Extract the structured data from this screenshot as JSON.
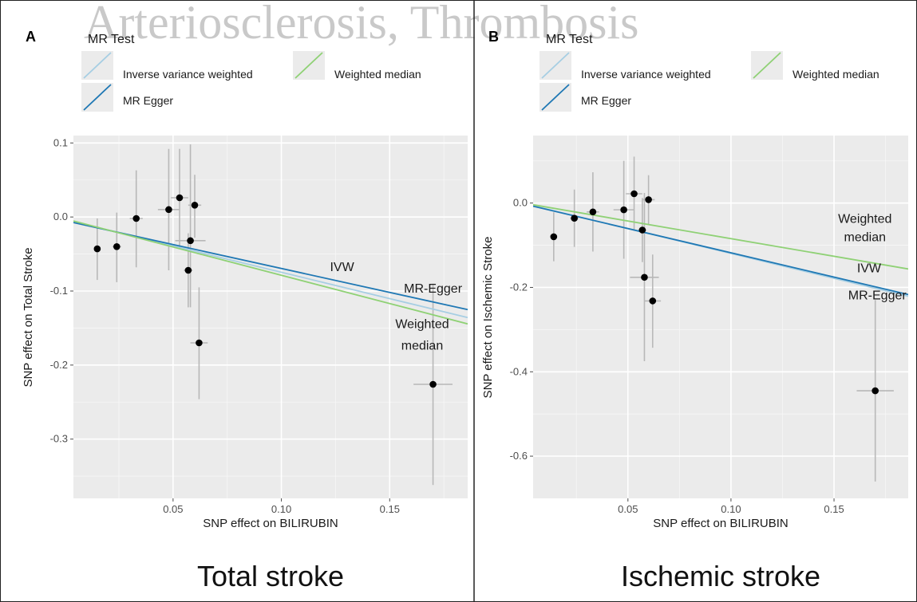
{
  "watermark": "Arteriosclerosis, Thrombosis",
  "legend": {
    "title": "MR Test",
    "items": [
      {
        "label": "Inverse variance weighted",
        "color": "#a6cee3"
      },
      {
        "label": "Weighted median",
        "color": "#8fd175"
      },
      {
        "label": "MR Egger",
        "color": "#1f78b4"
      }
    ]
  },
  "chart_data": [
    {
      "type": "scatter",
      "panel": "A",
      "caption": "Total stroke",
      "xlabel": "SNP effect on BILIRUBIN",
      "ylabel": "SNP effect on Total Stroke",
      "xlim": [
        0.004,
        0.186
      ],
      "ylim": [
        -0.38,
        0.11
      ],
      "xticks": [
        0.05,
        0.1,
        0.15
      ],
      "xtick_labels": [
        "0.05",
        "0.10",
        "0.15"
      ],
      "yticks": [
        0.1,
        0.0,
        -0.1,
        -0.2,
        -0.3
      ],
      "ytick_labels": [
        "0.1",
        "0.0",
        "-0.1",
        "-0.2",
        "-0.3"
      ],
      "points": [
        {
          "x": 0.015,
          "y": -0.043,
          "xerr": 0.0,
          "ylo": -0.085,
          "yhi": -0.002
        },
        {
          "x": 0.024,
          "y": -0.04,
          "xerr": 0.002,
          "ylo": -0.088,
          "yhi": 0.006
        },
        {
          "x": 0.033,
          "y": -0.002,
          "xerr": 0.003,
          "ylo": -0.068,
          "yhi": 0.063
        },
        {
          "x": 0.048,
          "y": 0.01,
          "xerr": 0.005,
          "ylo": -0.072,
          "yhi": 0.092
        },
        {
          "x": 0.053,
          "y": 0.026,
          "xerr": 0.004,
          "ylo": -0.042,
          "yhi": 0.092
        },
        {
          "x": 0.06,
          "y": 0.016,
          "xerr": 0.003,
          "ylo": -0.028,
          "yhi": 0.057
        },
        {
          "x": 0.058,
          "y": -0.032,
          "xerr": 0.007,
          "ylo": -0.122,
          "yhi": 0.098
        },
        {
          "x": 0.057,
          "y": -0.072,
          "xerr": 0.002,
          "ylo": -0.122,
          "yhi": -0.022
        },
        {
          "x": 0.062,
          "y": -0.17,
          "xerr": 0.004,
          "ylo": -0.246,
          "yhi": -0.095
        },
        {
          "x": 0.17,
          "y": -0.226,
          "xerr": 0.009,
          "ylo": -0.362,
          "yhi": -0.09
        }
      ],
      "series": [
        {
          "name": "Inverse variance weighted",
          "color": "#a6cee3",
          "x": [
            0.004,
            0.186
          ],
          "y": [
            -0.0064,
            -0.1358
          ]
        },
        {
          "name": "MR Egger",
          "color": "#1f78b4",
          "x": [
            0.004,
            0.186
          ],
          "y": [
            -0.0075,
            -0.1251
          ]
        },
        {
          "name": "Weighted median",
          "color": "#8fd175",
          "x": [
            0.004,
            0.186
          ],
          "y": [
            -0.0054,
            -0.1444
          ]
        }
      ],
      "annotations": [
        {
          "text": "IVW",
          "x": 0.128,
          "y": -0.073
        },
        {
          "text": "MR-Egger",
          "x": 0.17,
          "y": -0.102
        },
        {
          "text": "Weighted",
          "x": 0.165,
          "y": -0.15
        },
        {
          "text": "median",
          "x": 0.165,
          "y": -0.179
        }
      ]
    },
    {
      "type": "scatter",
      "panel": "B",
      "caption": "Ischemic stroke",
      "xlabel": "SNP effect on BILIRUBIN",
      "ylabel": "SNP effect on Ischemic Stroke",
      "xlim": [
        0.004,
        0.186
      ],
      "ylim": [
        -0.7,
        0.16
      ],
      "xticks": [
        0.05,
        0.1,
        0.15
      ],
      "xtick_labels": [
        "0.05",
        "0.10",
        "0.15"
      ],
      "yticks": [
        0.0,
        -0.2,
        -0.4,
        -0.6
      ],
      "ytick_labels": [
        "0.0",
        "-0.2",
        "-0.4",
        "-0.6"
      ],
      "points": [
        {
          "x": 0.014,
          "y": -0.08,
          "xerr": 0.0,
          "ylo": -0.138,
          "yhi": -0.022
        },
        {
          "x": 0.024,
          "y": -0.036,
          "xerr": 0.002,
          "ylo": -0.104,
          "yhi": 0.032
        },
        {
          "x": 0.033,
          "y": -0.021,
          "xerr": 0.003,
          "ylo": -0.115,
          "yhi": 0.073
        },
        {
          "x": 0.048,
          "y": -0.016,
          "xerr": 0.005,
          "ylo": -0.132,
          "yhi": 0.1
        },
        {
          "x": 0.053,
          "y": 0.022,
          "xerr": 0.004,
          "ylo": -0.066,
          "yhi": 0.11
        },
        {
          "x": 0.06,
          "y": 0.008,
          "xerr": 0.003,
          "ylo": -0.05,
          "yhi": 0.066
        },
        {
          "x": 0.057,
          "y": -0.064,
          "xerr": 0.002,
          "ylo": -0.14,
          "yhi": 0.012
        },
        {
          "x": 0.058,
          "y": -0.176,
          "xerr": 0.007,
          "ylo": -0.375,
          "yhi": 0.024
        },
        {
          "x": 0.062,
          "y": -0.232,
          "xerr": 0.004,
          "ylo": -0.343,
          "yhi": -0.122
        },
        {
          "x": 0.17,
          "y": -0.445,
          "xerr": 0.009,
          "ylo": -0.66,
          "yhi": -0.23
        }
      ],
      "series": [
        {
          "name": "Inverse variance weighted",
          "color": "#a6cee3",
          "x": [
            0.004,
            0.186
          ],
          "y": [
            -0.0063,
            -0.2209
          ]
        },
        {
          "name": "MR Egger",
          "color": "#1f78b4",
          "x": [
            0.004,
            0.186
          ],
          "y": [
            -0.0075,
            -0.2169
          ]
        },
        {
          "name": "Weighted median",
          "color": "#8fd175",
          "x": [
            0.004,
            0.186
          ],
          "y": [
            -0.0041,
            -0.1563
          ]
        }
      ],
      "annotations": [
        {
          "text": "Weighted",
          "x": 0.165,
          "y": -0.047
        },
        {
          "text": "median",
          "x": 0.165,
          "y": -0.09
        },
        {
          "text": "IVW",
          "x": 0.167,
          "y": -0.164
        },
        {
          "text": "MR-Egger",
          "x": 0.171,
          "y": -0.228
        }
      ]
    }
  ]
}
